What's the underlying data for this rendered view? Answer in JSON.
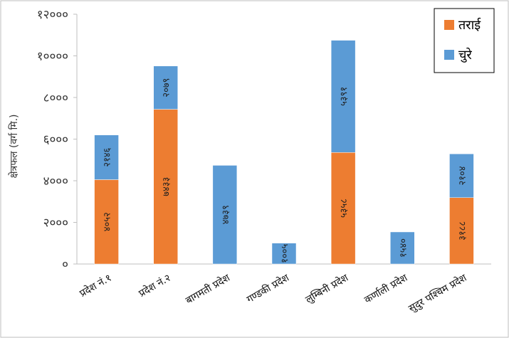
{
  "chart_data": {
    "type": "bar",
    "stacked": true,
    "categories": [
      "प्रदेश नं.१",
      "प्रदेश नं.२",
      "बागमती प्रदेश",
      "गण्डकी प्रदेश",
      "लुम्बिनी प्रदेश",
      "कर्णाली प्रदेश",
      "सुदुर पश्चिम प्रदेश"
    ],
    "series": [
      {
        "name": "तराई",
        "color": "#ED7D31",
        "values": [
          4052,
          7433,
          0,
          0,
          5358,
          0,
          3188
        ],
        "labels": [
          "४०५२",
          "७४३३",
          "",
          "",
          "५३५८",
          "",
          "३१८८"
        ]
      },
      {
        "name": "चुरे",
        "color": "#5B9BD5",
        "values": [
          2146,
          2079,
          4739,
          1005,
          5391,
          1540,
          2104
        ],
        "labels": [
          "२१४६",
          "२०७९",
          "४७३९",
          "१००५",
          "५३९१",
          "१५४०",
          "२१०४"
        ]
      }
    ],
    "ylabel": "क्षेत्रफल (वर्ग मि.)",
    "ylim": [
      0,
      12000
    ],
    "yticks": [
      0,
      2000,
      4000,
      6000,
      8000,
      10000,
      12000
    ],
    "ytick_labels": [
      "०",
      "२०००",
      "४०००",
      "६०००",
      "८०००",
      "१००००",
      "१२०००"
    ],
    "grid": false,
    "legend_position": "top-right"
  }
}
